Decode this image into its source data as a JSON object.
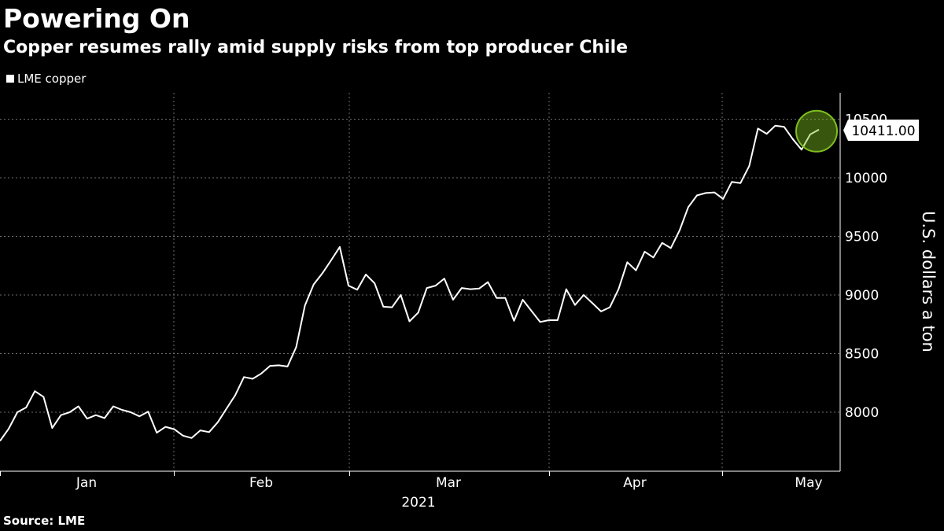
{
  "header": {
    "title": "Powering On",
    "subtitle": "Copper resumes rally amid supply risks from top producer Chile"
  },
  "legend": {
    "label": "LME copper"
  },
  "footer": {
    "source": "Source: LME"
  },
  "colors": {
    "background": "#000000",
    "line": "#ffffff",
    "highlight": "#7fbf1f"
  },
  "chart_data": {
    "type": "line",
    "title": "Powering On",
    "subtitle": "Copper resumes rally amid supply risks from top producer Chile",
    "ylabel": "U.S. dollars a ton",
    "ylim": [
      7610,
      10770
    ],
    "yticks": [
      8000,
      8500,
      9000,
      9500,
      10000,
      10500
    ],
    "x_month_labels": [
      "Jan",
      "Feb",
      "Mar",
      "Apr",
      "May"
    ],
    "x_year_label": "2021",
    "last_value_label": "10411.00",
    "grid": true,
    "legend_position": "top-left",
    "series": [
      {
        "name": "LME copper",
        "values": [
          7755,
          7860,
          8000,
          8040,
          8180,
          8130,
          7865,
          7975,
          8000,
          8050,
          7945,
          7975,
          7950,
          8050,
          8020,
          8000,
          7965,
          8005,
          7825,
          7875,
          7855,
          7800,
          7780,
          7845,
          7830,
          7915,
          8030,
          8145,
          8300,
          8285,
          8330,
          8395,
          8400,
          8390,
          8555,
          8910,
          9090,
          9185,
          9295,
          9410,
          9080,
          9045,
          9175,
          9100,
          8900,
          8895,
          9000,
          8775,
          8850,
          9060,
          9080,
          9140,
          8960,
          9060,
          9050,
          9055,
          9110,
          8975,
          8975,
          8780,
          8960,
          8865,
          8770,
          8785,
          8785,
          9050,
          8915,
          9000,
          8930,
          8860,
          8895,
          9050,
          9280,
          9210,
          9370,
          9320,
          9445,
          9400,
          9550,
          9750,
          9850,
          9870,
          9875,
          9820,
          9965,
          9955,
          10100,
          10420,
          10375,
          10445,
          10435,
          10330,
          10240,
          10370,
          10411
        ]
      }
    ]
  }
}
